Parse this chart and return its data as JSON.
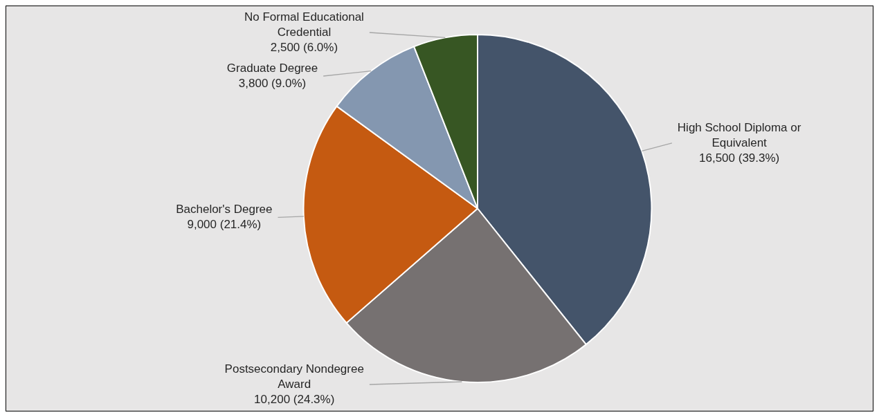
{
  "chart_data": {
    "type": "pie",
    "categories": [
      "High School Diploma or Equivalent",
      "Postsecondary Nondegree Award",
      "Bachelor's Degree",
      "Graduate Degree",
      "No Formal Educational Credential"
    ],
    "values": [
      16500,
      10200,
      9000,
      3800,
      2500
    ],
    "value_labels": [
      "16,500 (39.3%)",
      "10,200 (24.3%)",
      "9,000 (21.4%)",
      "3,800 (9.0%)",
      "2,500 (6.0%)"
    ],
    "colors": [
      "#44546a",
      "#767171",
      "#c55a11",
      "#8497b0",
      "#375623"
    ],
    "legend": false
  }
}
